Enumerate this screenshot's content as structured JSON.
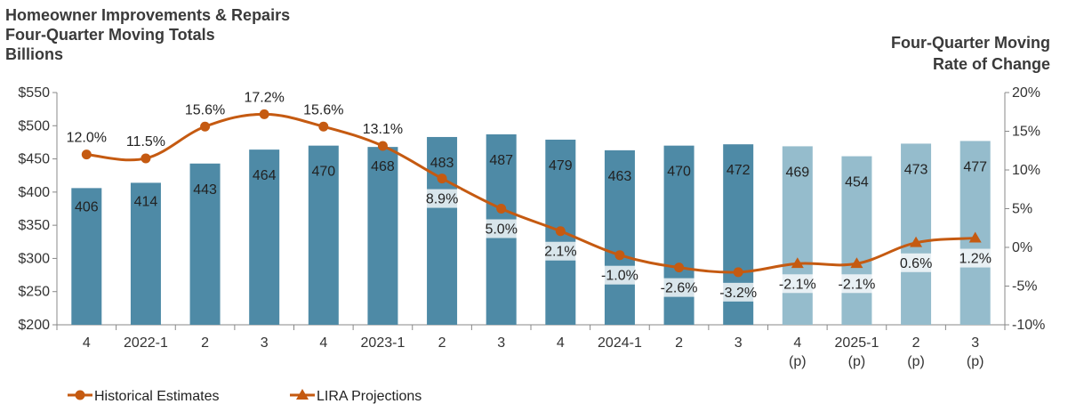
{
  "chart_data": {
    "type": "bar+line",
    "title_left": [
      "Homeowner Improvements & Repairs",
      "Four-Quarter Moving Totals",
      "Billions"
    ],
    "title_right": [
      "Four-Quarter Moving",
      "Rate of Change"
    ],
    "categories": [
      [
        "4",
        ""
      ],
      [
        "2022-1",
        ""
      ],
      [
        "2",
        ""
      ],
      [
        "3",
        ""
      ],
      [
        "4",
        ""
      ],
      [
        "2023-1",
        ""
      ],
      [
        "2",
        ""
      ],
      [
        "3",
        ""
      ],
      [
        "4",
        ""
      ],
      [
        "2024-1",
        ""
      ],
      [
        "2",
        ""
      ],
      [
        "3",
        ""
      ],
      [
        "4",
        "(p)"
      ],
      [
        "2025-1",
        "(p)"
      ],
      [
        "2",
        "(p)"
      ],
      [
        "3",
        "(p)"
      ]
    ],
    "bars": {
      "values": [
        406,
        414,
        443,
        464,
        470,
        468,
        483,
        487,
        479,
        463,
        470,
        472,
        469,
        454,
        473,
        477
      ],
      "labels": [
        "406",
        "414",
        "443",
        "464",
        "470",
        "468",
        "483",
        "487",
        "479",
        "463",
        "470",
        "472",
        "469",
        "454",
        "473",
        "477"
      ],
      "projected_from_index": 12,
      "color_historical": "#4e8aa6",
      "color_projected": "#95bccc"
    },
    "line": {
      "values": [
        12.0,
        11.5,
        15.6,
        17.2,
        15.6,
        13.1,
        8.9,
        5.0,
        2.1,
        -1.0,
        -2.6,
        -3.2,
        -2.1,
        -2.1,
        0.6,
        1.2
      ],
      "labels": [
        "12.0%",
        "11.5%",
        "15.6%",
        "17.2%",
        "15.6%",
        "13.1%",
        "8.9%",
        "5.0%",
        "2.1%",
        "-1.0%",
        "-2.6%",
        "-3.2%",
        "-2.1%",
        "-2.1%",
        "0.6%",
        "1.2%"
      ],
      "color": "#c55a11",
      "projected_from_index": 12
    },
    "y_left": {
      "min": 200,
      "max": 550,
      "step": 50,
      "labels": [
        "$200",
        "$250",
        "$300",
        "$350",
        "$400",
        "$450",
        "$500",
        "$550"
      ]
    },
    "y_right": {
      "min": -10,
      "max": 20,
      "step": 5,
      "labels": [
        "-10%",
        "-5%",
        "0%",
        "5%",
        "10%",
        "15%",
        "20%"
      ]
    },
    "legend": {
      "historical": "Historical Estimates",
      "projections": "LIRA Projections",
      "placement": "bottom-left"
    }
  }
}
